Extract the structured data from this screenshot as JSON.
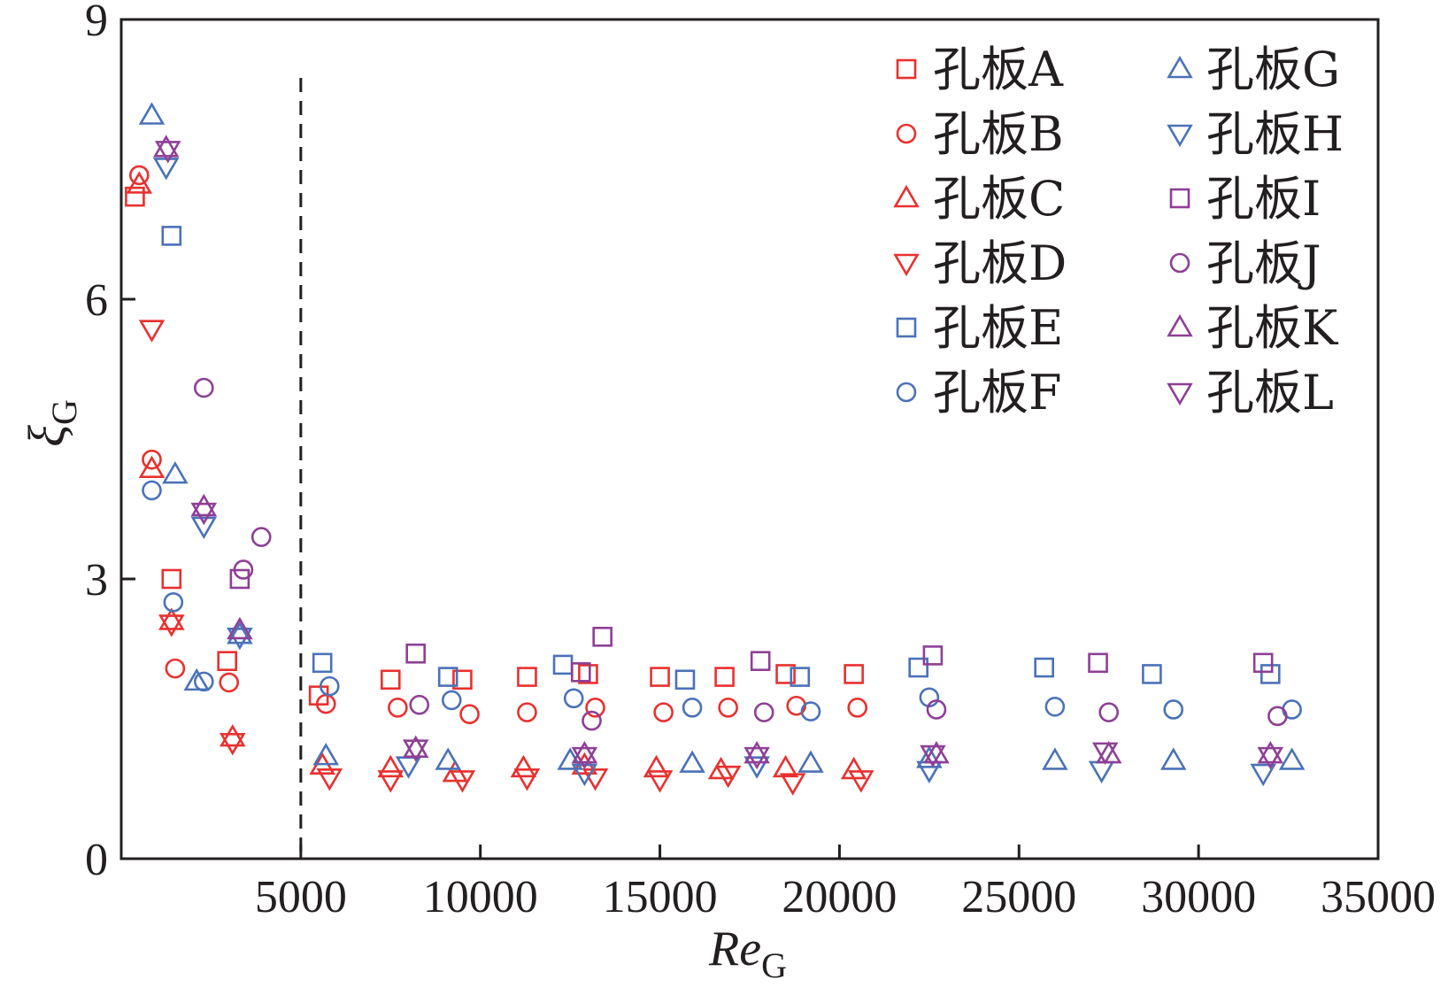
{
  "chart_data": {
    "type": "scatter",
    "xlabel": {
      "main": "Re",
      "sub": "G"
    },
    "ylabel": {
      "main": "ξ",
      "sub": "G"
    },
    "xlim": [
      0,
      35000
    ],
    "ylim": [
      0,
      9
    ],
    "xticks": [
      5000,
      10000,
      15000,
      20000,
      25000,
      30000,
      35000
    ],
    "xtick_labels": [
      "5000",
      "10000",
      "15000",
      "20000",
      "25000",
      "30000",
      "35000"
    ],
    "yticks": [
      0,
      3,
      6,
      9
    ],
    "ytick_labels": [
      "0",
      "3",
      "6",
      "9"
    ],
    "grid": false,
    "legend_position": "top-right",
    "reference_line": {
      "x": 5000,
      "style": "dashed"
    },
    "colors": {
      "red": "#e8312f",
      "blue": "#4a72b8",
      "purple": "#8e3f96",
      "axis": "#231f20"
    },
    "series": [
      {
        "name": "孔板A",
        "marker": "square",
        "color": "#e8312f",
        "points": [
          [
            380,
            7.1
          ],
          [
            1400,
            3.0
          ],
          [
            2950,
            2.12
          ],
          [
            5500,
            1.75
          ],
          [
            7500,
            1.92
          ],
          [
            9500,
            1.92
          ],
          [
            11300,
            1.95
          ],
          [
            13000,
            1.98
          ],
          [
            15000,
            1.95
          ],
          [
            16800,
            1.95
          ],
          [
            18500,
            1.98
          ],
          [
            20400,
            1.98
          ]
        ]
      },
      {
        "name": "孔板B",
        "marker": "circle",
        "color": "#e8312f",
        "points": [
          [
            500,
            7.33
          ],
          [
            850,
            4.28
          ],
          [
            1500,
            2.04
          ],
          [
            3000,
            1.89
          ],
          [
            5700,
            1.66
          ],
          [
            7700,
            1.62
          ],
          [
            9700,
            1.55
          ],
          [
            11300,
            1.57
          ],
          [
            13200,
            1.62
          ],
          [
            15100,
            1.57
          ],
          [
            16900,
            1.62
          ],
          [
            18800,
            1.64
          ],
          [
            20500,
            1.62
          ]
        ]
      },
      {
        "name": "孔板C",
        "marker": "triangle-up",
        "color": "#e8312f",
        "points": [
          [
            500,
            7.23
          ],
          [
            850,
            4.18
          ],
          [
            1400,
            2.55
          ],
          [
            3100,
            1.3
          ],
          [
            5600,
            1.0
          ],
          [
            7500,
            0.97
          ],
          [
            9300,
            0.92
          ],
          [
            11200,
            0.97
          ],
          [
            12900,
            1.0
          ],
          [
            14900,
            0.97
          ],
          [
            16700,
            0.95
          ],
          [
            18500,
            0.97
          ],
          [
            20400,
            0.95
          ]
        ]
      },
      {
        "name": "孔板D",
        "marker": "triangle-down",
        "color": "#e8312f",
        "points": [
          [
            850,
            5.68
          ],
          [
            1400,
            2.52
          ],
          [
            3100,
            1.25
          ],
          [
            5800,
            0.87
          ],
          [
            7500,
            0.85
          ],
          [
            9500,
            0.85
          ],
          [
            11300,
            0.87
          ],
          [
            13200,
            0.87
          ],
          [
            15000,
            0.85
          ],
          [
            16900,
            0.9
          ],
          [
            18700,
            0.82
          ],
          [
            20600,
            0.85
          ]
        ]
      },
      {
        "name": "孔板E",
        "marker": "square",
        "color": "#4a72b8",
        "points": [
          [
            1400,
            6.68
          ],
          [
            5600,
            2.1
          ],
          [
            9100,
            1.95
          ],
          [
            12300,
            2.08
          ],
          [
            15700,
            1.92
          ],
          [
            18900,
            1.95
          ],
          [
            22200,
            2.05
          ],
          [
            25700,
            2.05
          ],
          [
            28700,
            1.98
          ],
          [
            32000,
            1.98
          ]
        ]
      },
      {
        "name": "孔板F",
        "marker": "circle",
        "color": "#4a72b8",
        "points": [
          [
            850,
            3.95
          ],
          [
            1450,
            2.75
          ],
          [
            2300,
            1.9
          ],
          [
            5800,
            1.85
          ],
          [
            9200,
            1.7
          ],
          [
            12600,
            1.72
          ],
          [
            15900,
            1.62
          ],
          [
            19200,
            1.58
          ],
          [
            22500,
            1.73
          ],
          [
            26000,
            1.63
          ],
          [
            29300,
            1.6
          ],
          [
            32600,
            1.6
          ]
        ]
      },
      {
        "name": "孔板G",
        "marker": "triangle-up",
        "color": "#4a72b8",
        "points": [
          [
            850,
            7.97
          ],
          [
            1500,
            4.12
          ],
          [
            2100,
            1.9
          ],
          [
            3300,
            2.4
          ],
          [
            5700,
            1.1
          ],
          [
            9100,
            1.05
          ],
          [
            12500,
            1.05
          ],
          [
            15900,
            1.02
          ],
          [
            19200,
            1.02
          ],
          [
            22500,
            1.07
          ],
          [
            26000,
            1.05
          ],
          [
            29300,
            1.05
          ],
          [
            32600,
            1.05
          ]
        ]
      },
      {
        "name": "孔板H",
        "marker": "triangle-down",
        "color": "#4a72b8",
        "points": [
          [
            1250,
            7.42
          ],
          [
            2300,
            3.57
          ],
          [
            3300,
            2.38
          ],
          [
            8000,
            1.0
          ],
          [
            12900,
            0.92
          ],
          [
            17700,
            1.0
          ],
          [
            22500,
            0.95
          ],
          [
            27300,
            0.95
          ],
          [
            31800,
            0.92
          ]
        ]
      },
      {
        "name": "孔板I",
        "marker": "square",
        "color": "#8e3f96",
        "points": [
          [
            3300,
            3.0
          ],
          [
            8200,
            2.2
          ],
          [
            12800,
            2.0
          ],
          [
            13400,
            2.38
          ],
          [
            17800,
            2.12
          ],
          [
            22600,
            2.18
          ],
          [
            27200,
            2.1
          ],
          [
            31800,
            2.1
          ]
        ]
      },
      {
        "name": "孔板J",
        "marker": "circle",
        "color": "#8e3f96",
        "points": [
          [
            2300,
            5.05
          ],
          [
            3400,
            3.1
          ],
          [
            3900,
            3.45
          ],
          [
            8300,
            1.65
          ],
          [
            13100,
            1.48
          ],
          [
            17900,
            1.57
          ],
          [
            22700,
            1.6
          ],
          [
            27500,
            1.57
          ],
          [
            32200,
            1.53
          ]
        ]
      },
      {
        "name": "孔板K",
        "marker": "triangle-up",
        "color": "#8e3f96",
        "points": [
          [
            1250,
            7.62
          ],
          [
            2300,
            3.77
          ],
          [
            3300,
            2.45
          ],
          [
            8200,
            1.18
          ],
          [
            12900,
            1.12
          ],
          [
            17700,
            1.12
          ],
          [
            22700,
            1.12
          ],
          [
            27500,
            1.12
          ],
          [
            32000,
            1.12
          ]
        ]
      },
      {
        "name": "孔板L",
        "marker": "triangle-down",
        "color": "#8e3f96",
        "points": [
          [
            1300,
            7.6
          ],
          [
            2300,
            3.72
          ],
          [
            8200,
            1.18
          ],
          [
            12900,
            1.1
          ],
          [
            17700,
            1.1
          ],
          [
            22600,
            1.12
          ],
          [
            27400,
            1.15
          ],
          [
            32000,
            1.1
          ]
        ]
      }
    ]
  }
}
